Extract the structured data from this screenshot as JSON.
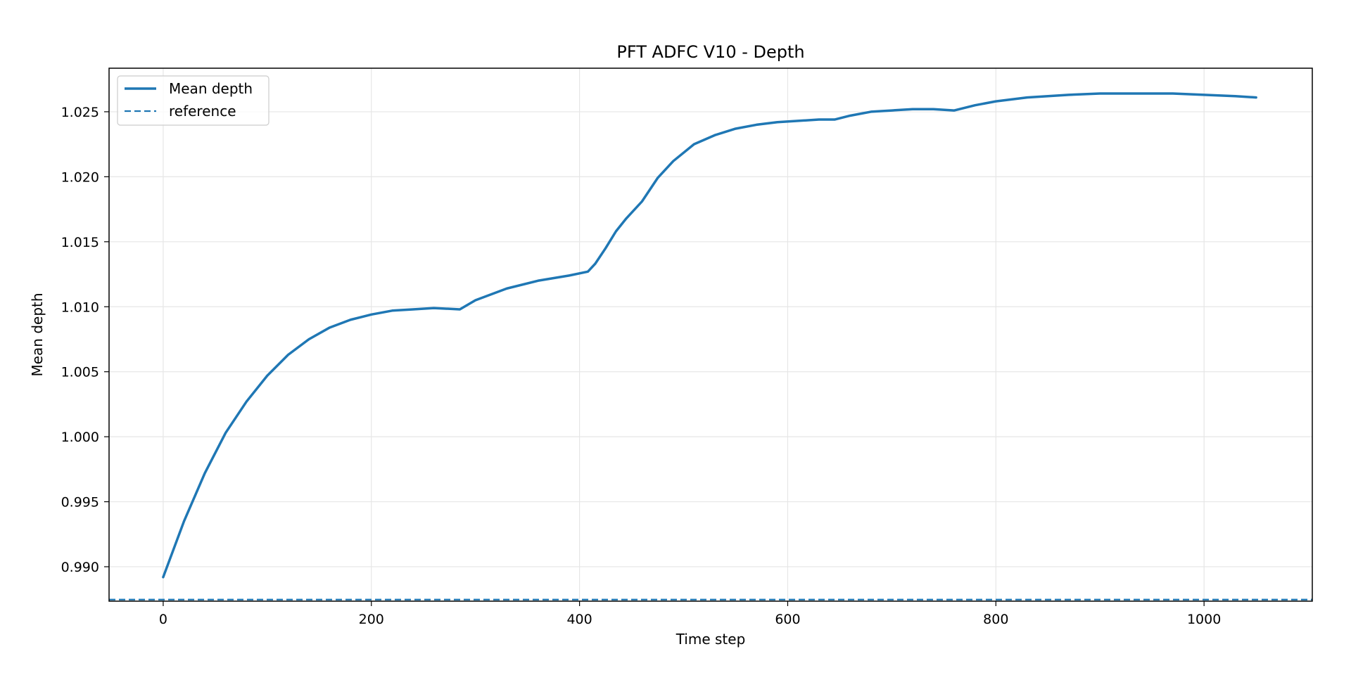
{
  "chart_data": {
    "type": "line",
    "title": "PFT ADFC V10 - Depth",
    "xlabel": "Time step",
    "ylabel": "Mean depth",
    "xlim": [
      -52,
      1104
    ],
    "ylim": [
      0.98735,
      1.02835
    ],
    "xticks": [
      0,
      200,
      400,
      600,
      800,
      1000
    ],
    "yticks": [
      0.99,
      0.995,
      1.0,
      1.005,
      1.01,
      1.015,
      1.02,
      1.025
    ],
    "ytick_labels": [
      "0.990",
      "0.995",
      "1.000",
      "1.005",
      "1.010",
      "1.015",
      "1.020",
      "1.025"
    ],
    "grid": true,
    "legend": {
      "placement": "upper-left",
      "entries": [
        {
          "label": "Mean depth",
          "style": "solid"
        },
        {
          "label": "reference",
          "style": "dashed"
        }
      ]
    },
    "colors": {
      "series": "#1f77b4",
      "grid": "#e6e6e6"
    },
    "series": [
      {
        "name": "Mean depth",
        "style": "solid",
        "x": [
          0,
          20,
          40,
          60,
          80,
          100,
          120,
          140,
          160,
          180,
          200,
          220,
          240,
          260,
          285,
          300,
          330,
          360,
          390,
          408,
          415,
          425,
          435,
          445,
          460,
          475,
          490,
          510,
          530,
          550,
          570,
          590,
          610,
          630,
          645,
          660,
          680,
          700,
          720,
          740,
          760,
          780,
          800,
          830,
          870,
          900,
          935,
          970,
          1000,
          1030,
          1050
        ],
        "y": [
          0.9892,
          0.9935,
          0.9972,
          1.0003,
          1.0027,
          1.0047,
          1.0063,
          1.0075,
          1.0084,
          1.009,
          1.0094,
          1.0097,
          1.0098,
          1.0099,
          1.0098,
          1.0105,
          1.0114,
          1.012,
          1.0124,
          1.0127,
          1.0133,
          1.0145,
          1.0158,
          1.0168,
          1.0181,
          1.0199,
          1.0212,
          1.0225,
          1.0232,
          1.0237,
          1.024,
          1.0242,
          1.0243,
          1.0244,
          1.0244,
          1.0247,
          1.025,
          1.0251,
          1.0252,
          1.0252,
          1.0251,
          1.0255,
          1.0258,
          1.0261,
          1.0263,
          1.0264,
          1.0264,
          1.0264,
          1.0263,
          1.0262,
          1.0261
        ]
      },
      {
        "name": "reference",
        "style": "dashed",
        "y_constant": 0.98747
      }
    ]
  }
}
